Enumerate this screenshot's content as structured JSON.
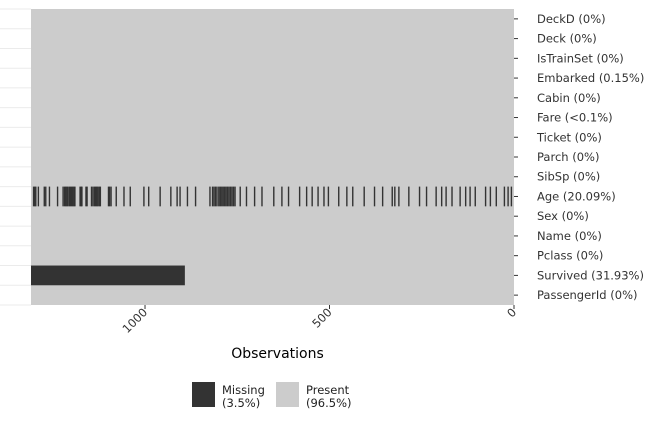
{
  "chart_data": {
    "type": "heatmap",
    "title": "",
    "xlabel": "Observations",
    "ylabel": "",
    "n_observations": 1309,
    "x_ticks": [
      1000,
      500,
      0
    ],
    "x_reversed": true,
    "grid": true,
    "legend_position": "bottom",
    "colors": {
      "missing": "#333333",
      "present": "#cccccc"
    },
    "variables": [
      {
        "name": "DeckD",
        "label": "DeckD (0%)",
        "missing_pct": 0
      },
      {
        "name": "Deck",
        "label": "Deck (0%)",
        "missing_pct": 0
      },
      {
        "name": "IsTrainSet",
        "label": "IsTrainSet (0%)",
        "missing_pct": 0
      },
      {
        "name": "Embarked",
        "label": "Embarked (0.15%)",
        "missing_pct": 0.15
      },
      {
        "name": "Cabin",
        "label": "Cabin (0%)",
        "missing_pct": 0
      },
      {
        "name": "Fare",
        "label": "Fare (<0.1%)",
        "missing_pct": 0.08
      },
      {
        "name": "Ticket",
        "label": "Ticket (0%)",
        "missing_pct": 0
      },
      {
        "name": "Parch",
        "label": "Parch (0%)",
        "missing_pct": 0
      },
      {
        "name": "SibSp",
        "label": "SibSp (0%)",
        "missing_pct": 0
      },
      {
        "name": "Age",
        "label": "Age (20.09%)",
        "missing_pct": 20.09
      },
      {
        "name": "Sex",
        "label": "Sex (0%)",
        "missing_pct": 0
      },
      {
        "name": "Name",
        "label": "Name (0%)",
        "missing_pct": 0
      },
      {
        "name": "Pclass",
        "label": "Pclass (0%)",
        "missing_pct": 0
      },
      {
        "name": "Survived",
        "label": "Survived (31.93%)",
        "missing_pct": 31.93
      },
      {
        "name": "PassengerId",
        "label": "PassengerId (0%)",
        "missing_pct": 0
      }
    ],
    "age_missing_rows": [
      1302,
      1299,
      1296,
      1289,
      1273,
      1269,
      1259,
      1237,
      1222,
      1218,
      1215,
      1212,
      1209,
      1205,
      1202,
      1199,
      1196,
      1193,
      1190,
      1176,
      1173,
      1171,
      1160,
      1157,
      1145,
      1141,
      1137,
      1134,
      1131,
      1128,
      1124,
      1121,
      1099,
      1096,
      1092,
      1078,
      1057,
      1040,
      1003,
      990,
      959,
      930,
      913,
      905,
      885,
      863,
      824,
      817,
      813,
      809,
      805,
      800,
      796,
      792,
      788,
      784,
      780,
      776,
      772,
      768,
      764,
      760,
      756,
      742,
      725,
      703,
      683,
      651,
      629,
      611,
      581,
      562,
      547,
      531,
      515,
      503,
      475,
      453,
      437,
      406,
      378,
      356,
      330,
      323,
      312,
      285,
      256,
      237,
      211,
      196,
      184,
      168,
      146,
      131,
      119,
      105,
      77,
      64,
      48,
      26,
      16,
      7
    ],
    "survived_missing_range": [
      892,
      1309
    ],
    "legend": [
      {
        "key": "missing",
        "label_line1": "Missing",
        "label_line2": "(3.5%)"
      },
      {
        "key": "present",
        "label_line1": "Present",
        "label_line2": "(96.5%)"
      }
    ]
  }
}
